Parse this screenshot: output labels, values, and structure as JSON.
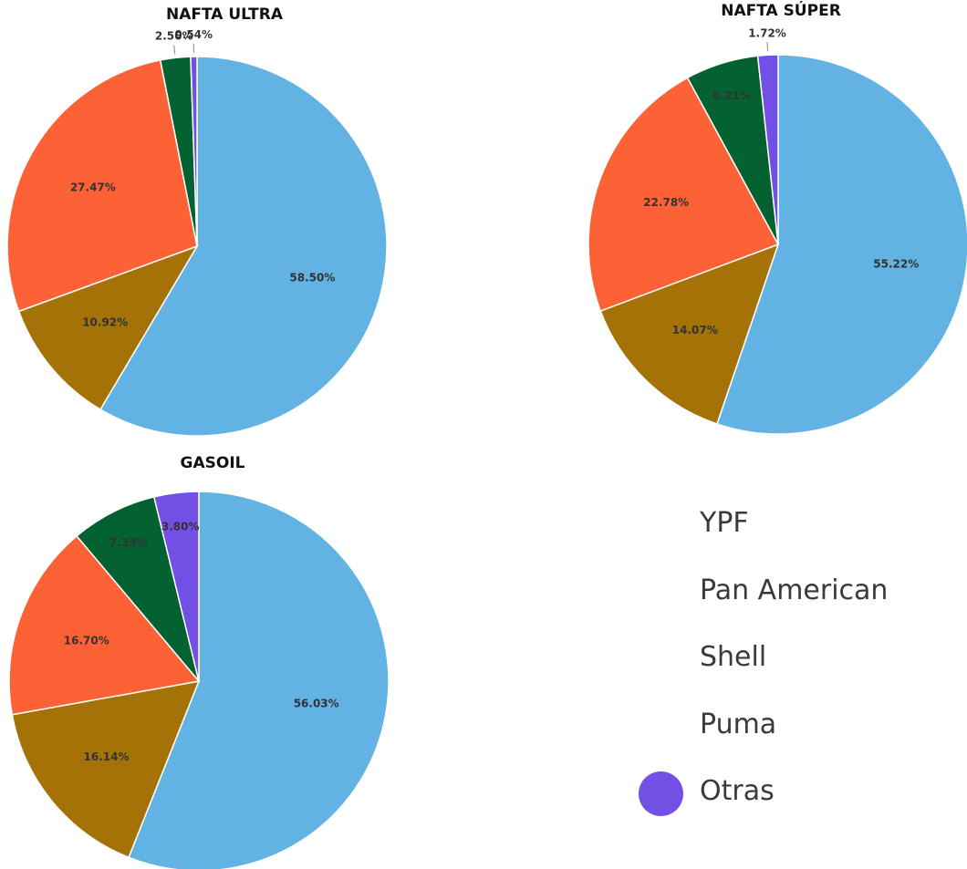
{
  "colors": {
    "YPF": "#62b3e3",
    "Puma": "#a57208",
    "Pan American": "#fd6236",
    "Shell": "#046131",
    "Otras": "#7350e5",
    "legend_swatches": [
      "#ffffff",
      "#ffffff",
      "#ffffff",
      "#ffffff",
      "#7350e5"
    ]
  },
  "legend": {
    "items": [
      "YPF",
      "Pan American",
      "Shell",
      "Puma",
      "Otras"
    ]
  },
  "chart_data": [
    {
      "type": "pie",
      "title": "NAFTA ULTRA",
      "slices": [
        {
          "category": "YPF",
          "value": 58.5,
          "label": "58.50%"
        },
        {
          "category": "Puma",
          "value": 10.92,
          "label": "10.92%"
        },
        {
          "category": "Pan American",
          "value": 27.47,
          "label": "27.47%"
        },
        {
          "category": "Shell",
          "value": 2.56,
          "label": "2.56%"
        },
        {
          "category": "Otras",
          "value": 0.54,
          "label": "0.54%"
        }
      ]
    },
    {
      "type": "pie",
      "title": "NAFTA SÚPER",
      "slices": [
        {
          "category": "YPF",
          "value": 55.22,
          "label": "55.22%"
        },
        {
          "category": "Puma",
          "value": 14.07,
          "label": "14.07%"
        },
        {
          "category": "Pan American",
          "value": 22.78,
          "label": "22.78%"
        },
        {
          "category": "Shell",
          "value": 6.21,
          "label": "6.21%"
        },
        {
          "category": "Otras",
          "value": 1.72,
          "label": "1.72%"
        }
      ]
    },
    {
      "type": "pie",
      "title": "GASOIL",
      "slices": [
        {
          "category": "YPF",
          "value": 56.03,
          "label": "56.03%"
        },
        {
          "category": "Puma",
          "value": 16.14,
          "label": "16.14%"
        },
        {
          "category": "Pan American",
          "value": 16.7,
          "label": "16.70%"
        },
        {
          "category": "Shell",
          "value": 7.33,
          "label": "7.33%"
        },
        {
          "category": "Otras",
          "value": 3.8,
          "label": "3.80%"
        }
      ]
    }
  ]
}
